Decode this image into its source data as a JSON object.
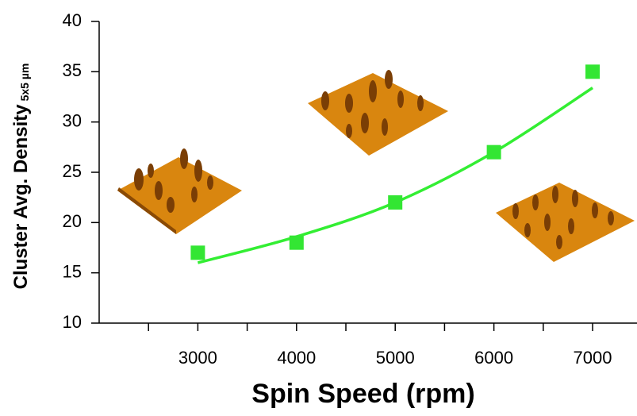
{
  "chart_data": {
    "type": "scatter",
    "x_label": "Spin Speed (rpm)",
    "y_label": "Cluster Avg. Density",
    "y_label_subscript": "5x5 µm",
    "x": [
      3000,
      4000,
      5000,
      6000,
      7000
    ],
    "values": [
      17,
      18,
      22,
      27,
      35
    ],
    "color": "#33e633",
    "fit": {
      "x": [
        3000,
        4000,
        5000,
        6000,
        7000
      ],
      "values": [
        16.0,
        18.6,
        22.0,
        27.0,
        33.4
      ],
      "color": "#33ee33"
    },
    "xlim": [
      2000,
      7450
    ],
    "xticks": [
      3000,
      4000,
      5000,
      6000,
      7000
    ],
    "xminorticks": [
      2500,
      3500,
      4500,
      5500,
      6500
    ],
    "ylim": [
      10,
      40
    ],
    "yticks": [
      10,
      15,
      20,
      25,
      30,
      35,
      40
    ]
  }
}
